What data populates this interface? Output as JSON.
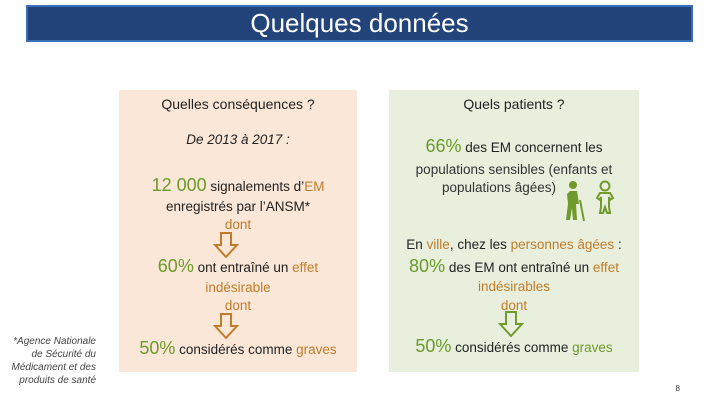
{
  "title": "Quelques données",
  "left": {
    "heading": "Quelles conséquences ?",
    "period": "De 2013 à 2017 :",
    "stat1_value": "12 000",
    "stat1_text1": " signalements d’",
    "stat1_highlight": "EM",
    "stat1_text2": "enregistrés par l’ANSM*",
    "dont1": "dont",
    "stat2_value": "60%",
    "stat2_text": " ont entraîné un ",
    "stat2_highlight": "effet",
    "stat2_highlight2": "indésirable",
    "dont2": "dont",
    "stat3_value": "50%",
    "stat3_text": " considérés comme ",
    "stat3_highlight": "graves"
  },
  "right": {
    "heading": "Quels patients ?",
    "stat1_value": "66%",
    "stat1_text": " des EM concernent les",
    "line2": "populations sensibles (enfants et",
    "line3": "populations âgées)",
    "context_prefix": "En ",
    "context_ville": "ville",
    "context_mid": ", chez les ",
    "context_agees": "personnes âgées",
    "context_suffix": " :",
    "stat2_value": "80%",
    "stat2_text": " des EM ont entraîné un ",
    "stat2_highlight": "effet",
    "stat2_highlight2": "indésirables",
    "dont": "dont",
    "stat3_value": "50%",
    "stat3_text": " considérés comme ",
    "stat3_highlight": "graves",
    "icons": [
      "elderly-person-icon",
      "baby-icon"
    ]
  },
  "footnote": "*Agence Nationale de Sécurité du Médicament et des produits de santé",
  "page_number": "8",
  "colors": {
    "title_bg": "#23447a",
    "left_panel": "#fbe7d8",
    "right_panel": "#e8efdd",
    "highlight_green": "#6b9a2a",
    "highlight_orange": "#c07c2a"
  }
}
